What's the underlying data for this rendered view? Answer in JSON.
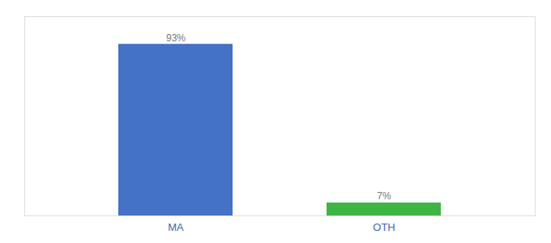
{
  "chart_data": {
    "type": "bar",
    "categories": [
      "MA",
      "OTH"
    ],
    "values": [
      93,
      7
    ],
    "value_labels": [
      "93%",
      "7%"
    ],
    "colors": [
      "#4472c4",
      "#3cb543"
    ],
    "ylim": [
      0,
      108
    ],
    "data_labels": true,
    "tick_labels": "x",
    "grid": false
  }
}
